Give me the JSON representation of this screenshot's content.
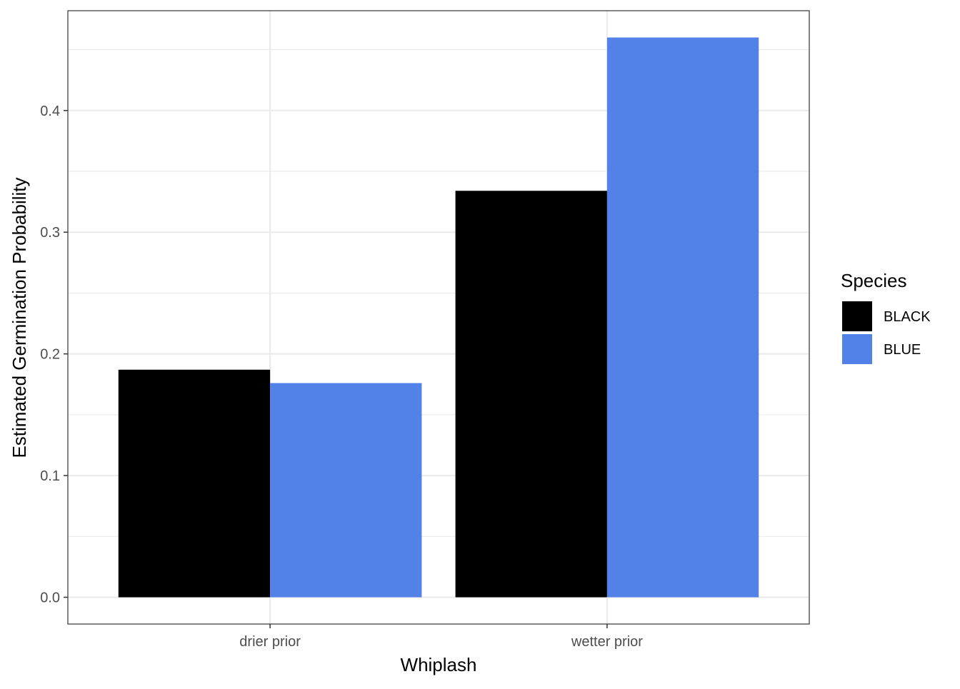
{
  "chart_data": {
    "type": "bar",
    "xlabel": "Whiplash",
    "ylabel": "Estimated Germination Probability",
    "categories": [
      "drier prior",
      "wetter prior"
    ],
    "series": [
      {
        "name": "BLACK",
        "color": "#000000",
        "values": [
          0.187,
          0.334
        ]
      },
      {
        "name": "BLUE",
        "color": "#5281E8",
        "values": [
          0.176,
          0.46
        ]
      }
    ],
    "ylim": [
      -0.022,
      0.482
    ],
    "yticks": [
      0.0,
      0.1,
      0.2,
      0.3,
      0.4
    ],
    "ytick_labels": [
      "0.0",
      "0.1",
      "0.2",
      "0.3",
      "0.4"
    ],
    "legend": {
      "title": "Species",
      "position": "right"
    },
    "grid": true,
    "theme": "bw"
  }
}
